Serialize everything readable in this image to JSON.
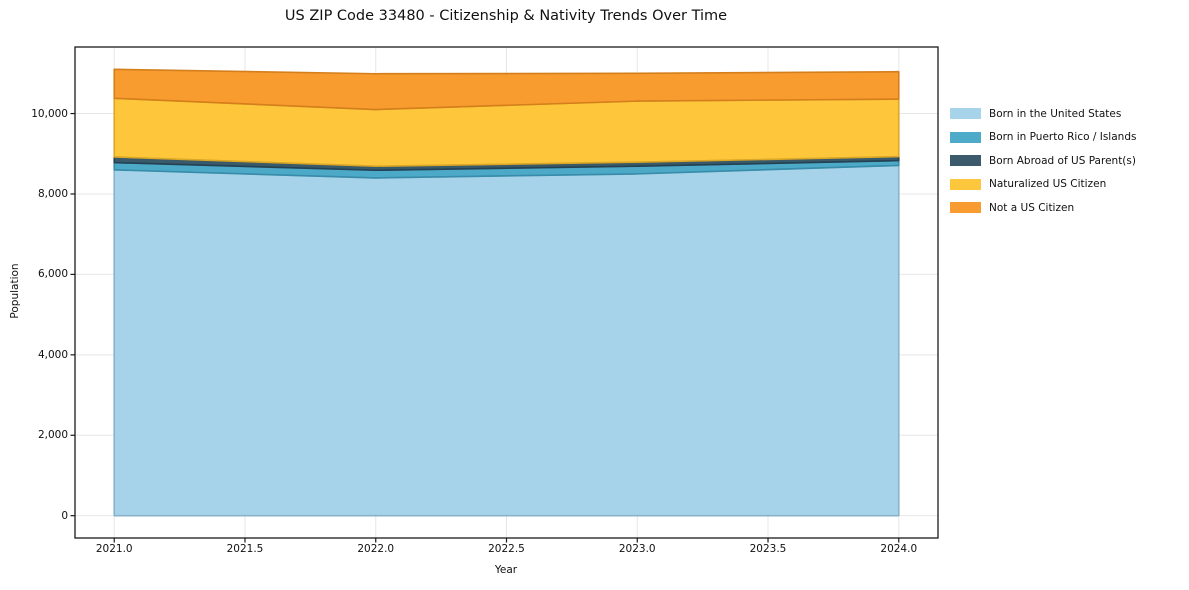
{
  "title": "US ZIP Code 33480 - Citizenship & Nativity Trends Over Time",
  "chart_data": {
    "type": "area",
    "stacked": true,
    "title": "US ZIP Code 33480 - Citizenship & Nativity Trends Over Time",
    "xlabel": "Year",
    "ylabel": "Population",
    "x": [
      2021,
      2022,
      2023,
      2024
    ],
    "series": [
      {
        "name": "Born in the United States",
        "color": "#9fd0e8",
        "values": [
          8600,
          8400,
          8500,
          8710
        ]
      },
      {
        "name": "Born in Puerto Rico / Islands",
        "color": "#3fa3c4",
        "values": [
          180,
          190,
          190,
          120
        ]
      },
      {
        "name": "Born Abroad of US Parent(s)",
        "color": "#2a4d5f",
        "values": [
          140,
          100,
          100,
          100
        ]
      },
      {
        "name": "Naturalized US Citizen",
        "color": "#fdc22c",
        "values": [
          1460,
          1410,
          1520,
          1430
        ]
      },
      {
        "name": "Not a US Citizen",
        "color": "#f79420",
        "values": [
          720,
          890,
          690,
          680
        ]
      }
    ],
    "totals": [
      11100,
      10990,
      11000,
      11040
    ],
    "xlim": [
      2020.85,
      2024.15
    ],
    "ylim": [
      -555,
      11655
    ],
    "xticks": {
      "values": [
        2021.0,
        2021.5,
        2022.0,
        2022.5,
        2023.0,
        2023.5,
        2024.0
      ],
      "labels": [
        "2021.0",
        "2021.5",
        "2022.0",
        "2022.5",
        "2023.0",
        "2023.5",
        "2024.0"
      ]
    },
    "yticks": {
      "values": [
        0,
        2000,
        4000,
        6000,
        8000,
        10000
      ],
      "labels": [
        "0",
        "2,000",
        "4,000",
        "6,000",
        "8,000",
        "10,000"
      ]
    },
    "grid": true,
    "grid_color": "#e7e7e7",
    "spine_color": "#1a1a1a",
    "legend_position": "right"
  }
}
